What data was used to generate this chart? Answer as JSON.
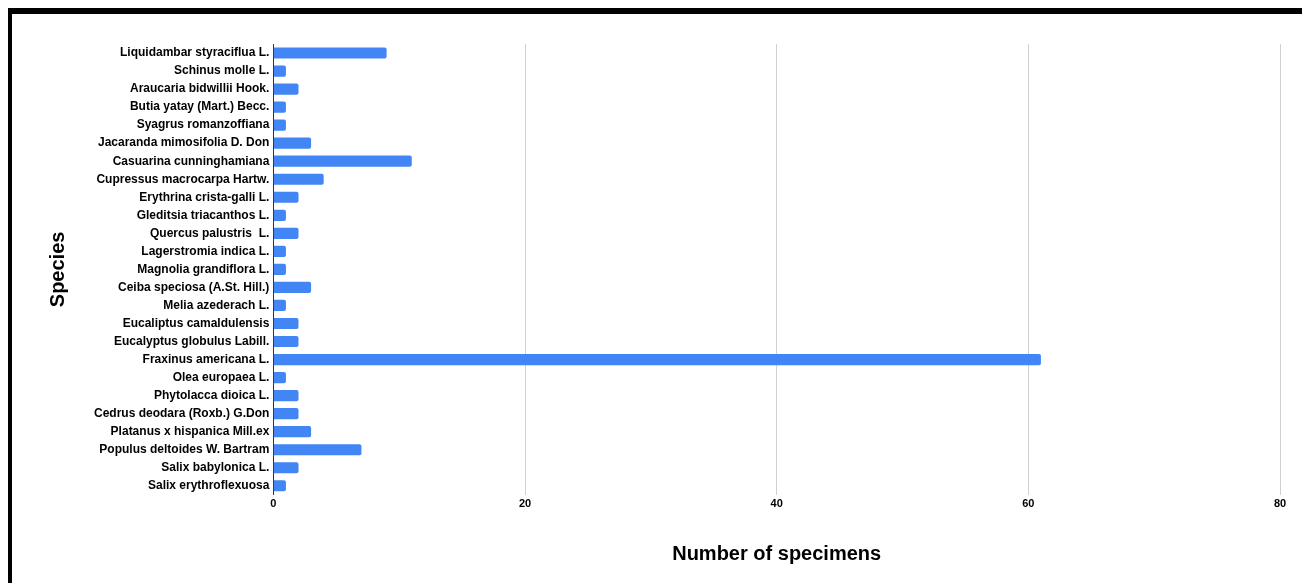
{
  "chart_data": {
    "type": "bar",
    "orientation": "horizontal",
    "xlabel": "Number of specimens",
    "ylabel": "Species",
    "categories": [
      "Liquidambar styraciflua L.",
      "Schinus molle L.",
      "Araucaria bidwillii Hook.",
      "Butia yatay (Mart.) Becc.",
      "Syagrus romanzoffiana",
      "Jacaranda mimosifolia D. Don",
      "Casuarina cunninghamiana",
      "Cupressus macrocarpa Hartw.",
      "Erythrina crista-galli L.",
      "Gleditsia triacanthos L.",
      "Quercus palustris  L.",
      "Lagerstromia indica L.",
      "Magnolia grandiflora L.",
      "Ceiba speciosa (A.St. Hill.)",
      "Melia azederach L.",
      "Eucaliptus camaldulensis",
      "Eucalyptus globulus Labill.",
      "Fraxinus americana L.",
      "Olea europaea L.",
      "Phytolacca dioica L.",
      "Cedrus deodara (Roxb.) G.Don",
      "Platanus x hispanica Mill.ex",
      "Populus deltoides W. Bartram",
      "Salix babylonica L.",
      "Salix erythroflexuosa"
    ],
    "values": [
      9,
      1,
      2,
      1,
      1,
      3,
      11,
      4,
      2,
      1,
      2,
      1,
      1,
      3,
      1,
      2,
      2,
      61,
      1,
      2,
      2,
      3,
      7,
      2,
      1
    ],
    "color": "#4285f4",
    "xlim": [
      0,
      80
    ],
    "xticks": [
      0,
      20,
      40,
      60,
      80
    ],
    "grid": "x",
    "legend": false
  }
}
